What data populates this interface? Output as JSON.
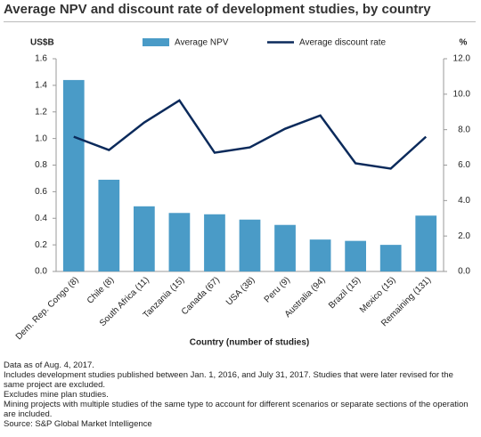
{
  "chart_data": {
    "type": "bar_line",
    "title": "Average NPV and discount rate of development studies, by country",
    "xlabel": "Country (number of studies)",
    "ylabel": "US$B",
    "y2label": "%",
    "categories": [
      "Dem. Rep. Congo (8)",
      "Chile (8)",
      "South Africa (11)",
      "Tanzania (15)",
      "Canada (67)",
      "USA (38)",
      "Peru (9)",
      "Australia (94)",
      "Brazil (15)",
      "Mexico (15)",
      "Remaining (131)"
    ],
    "series": [
      {
        "name": "Average NPV",
        "type": "bar",
        "color": "#4a9bc7",
        "values": [
          1.44,
          0.69,
          0.49,
          0.44,
          0.43,
          0.39,
          0.35,
          0.24,
          0.23,
          0.2,
          0.42
        ]
      },
      {
        "name": "Average discount rate",
        "type": "line",
        "axis": "y2",
        "color": "#0b2a5b",
        "values": [
          7.6,
          6.85,
          8.4,
          9.65,
          6.7,
          7.0,
          8.05,
          8.8,
          6.1,
          5.8,
          7.6
        ]
      }
    ],
    "ylim": [
      0,
      1.6
    ],
    "yticks": [
      {
        "value": 0,
        "label": "0.0"
      },
      0.2,
      0.4,
      0.6,
      0.8,
      {
        "value": 1,
        "label": "1.0"
      },
      1.2,
      1.4,
      1.6
    ],
    "y2lim": [
      0,
      12
    ],
    "y2ticks": [
      {
        "value": 0,
        "label": "0.0"
      },
      {
        "value": 2,
        "label": "2.0"
      },
      {
        "value": 4,
        "label": "4.0"
      },
      {
        "value": 6,
        "label": "6.0"
      },
      {
        "value": 8,
        "label": "8.0"
      },
      {
        "value": 10,
        "label": "10.0"
      },
      {
        "value": 12,
        "label": "12.0"
      }
    ],
    "grid": false,
    "notes": [
      "Data as of Aug. 4, 2017.",
      "Includes development studies published between Jan. 1, 2016, and July 31, 2017. Studies that were later revised for the same project are excluded.",
      "Excludes mine plan studies.",
      "Mining projects with multiple studies of the same type to account for different scenarios or separate sections of the operation are included."
    ],
    "source": "Source: S&P Global Market Intelligence"
  }
}
